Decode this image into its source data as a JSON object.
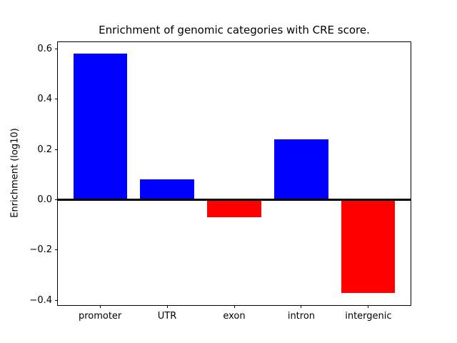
{
  "figure": {
    "background_color": "#ffffff",
    "axis_color": "#000000"
  },
  "chart_data": {
    "type": "bar",
    "title": "Enrichment of genomic categories with CRE score.",
    "xlabel": "",
    "ylabel": "Enrichment (log10)",
    "categories": [
      "promoter",
      "UTR",
      "exon",
      "intron",
      "intergenic"
    ],
    "values": [
      0.58,
      0.08,
      -0.07,
      0.24,
      -0.37
    ],
    "bar_colors": [
      "#0000ff",
      "#0000ff",
      "#ff0000",
      "#0000ff",
      "#ff0000"
    ],
    "positive_color": "#0000ff",
    "negative_color": "#ff0000",
    "bar_width": 0.8,
    "xlim": [
      -0.64,
      4.64
    ],
    "ylim": [
      -0.42,
      0.63
    ],
    "yticks": [
      0.6,
      0.4,
      0.2,
      0.0,
      -0.2,
      -0.4
    ],
    "ytick_labels": [
      "0.6",
      "0.4",
      "0.2",
      "0.0",
      "−0.2",
      "−0.4"
    ],
    "zero_line": true,
    "grid": false,
    "legend": null
  }
}
